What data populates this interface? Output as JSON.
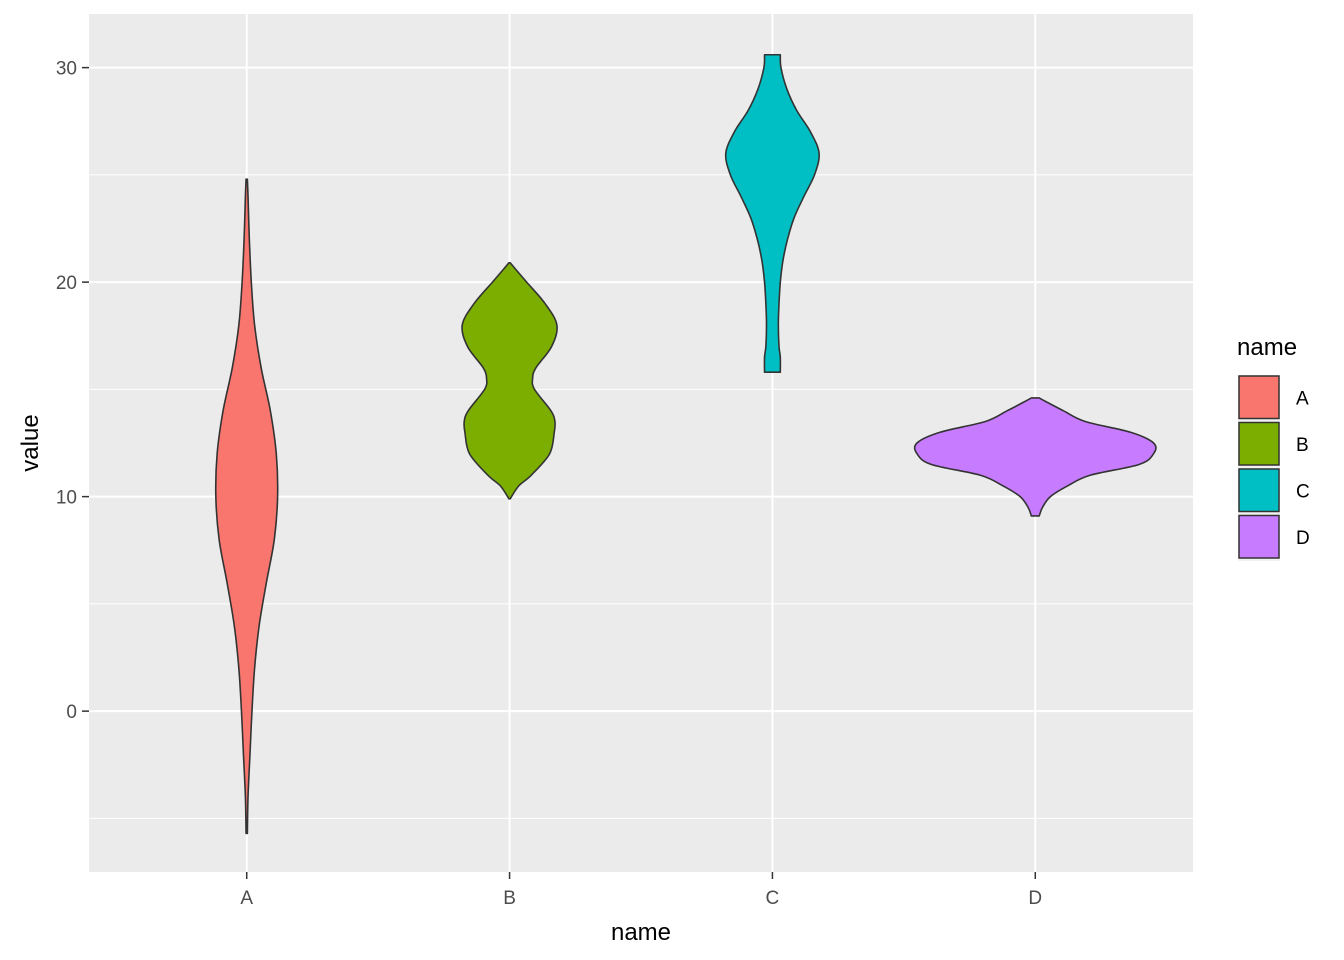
{
  "chart_data": {
    "type": "violin",
    "title": "",
    "xlabel": "name",
    "ylabel": "value",
    "ylim": [
      -7.5,
      32.5
    ],
    "y_ticks": [
      0,
      10,
      20,
      30
    ],
    "y_minor": [
      -5,
      5,
      15,
      25
    ],
    "grid": true,
    "categories": [
      "A",
      "B",
      "C",
      "D"
    ],
    "legend": {
      "title": "name",
      "position": "right",
      "entries": [
        "A",
        "B",
        "C",
        "D"
      ]
    },
    "series": [
      {
        "name": "A",
        "color": "#F8766D",
        "min": -5.7,
        "max": 24.8,
        "profile": [
          [
            -5.7,
            0.1
          ],
          [
            -4,
            0.2
          ],
          [
            -2,
            0.5
          ],
          [
            0,
            0.8
          ],
          [
            2,
            1.2
          ],
          [
            4,
            1.9
          ],
          [
            6,
            3.0
          ],
          [
            8,
            4.2
          ],
          [
            10,
            4.7
          ],
          [
            12,
            4.5
          ],
          [
            14,
            3.6
          ],
          [
            16,
            2.2
          ],
          [
            18,
            1.2
          ],
          [
            20,
            0.7
          ],
          [
            22,
            0.4
          ],
          [
            24,
            0.2
          ],
          [
            24.8,
            0.1
          ]
        ]
      },
      {
        "name": "B",
        "color": "#7CAE00",
        "min": 9.9,
        "max": 20.9,
        "profile": [
          [
            9.9,
            0.1
          ],
          [
            10.5,
            1.4
          ],
          [
            11,
            3.3
          ],
          [
            12,
            6.1
          ],
          [
            13,
            6.8
          ],
          [
            13.5,
            6.9
          ],
          [
            14,
            6.3
          ],
          [
            15,
            3.8
          ],
          [
            15.5,
            3.5
          ],
          [
            16,
            4.0
          ],
          [
            17,
            6.4
          ],
          [
            18,
            7.2
          ],
          [
            19,
            5.4
          ],
          [
            20,
            2.6
          ],
          [
            20.5,
            1.2
          ],
          [
            20.9,
            0.1
          ]
        ]
      },
      {
        "name": "C",
        "color": "#00BFC4",
        "min": 15.8,
        "max": 30.6,
        "profile": [
          [
            15.8,
            1.2
          ],
          [
            16.5,
            1.2
          ],
          [
            17,
            1.0
          ],
          [
            18,
            0.9
          ],
          [
            19,
            1.0
          ],
          [
            20,
            1.2
          ],
          [
            21,
            1.6
          ],
          [
            22,
            2.3
          ],
          [
            23,
            3.3
          ],
          [
            24,
            4.8
          ],
          [
            25,
            6.4
          ],
          [
            26,
            7.1
          ],
          [
            27,
            5.8
          ],
          [
            28,
            3.7
          ],
          [
            29,
            2.2
          ],
          [
            30,
            1.3
          ],
          [
            30.6,
            1.2
          ]
        ]
      },
      {
        "name": "D",
        "color": "#C77CFF",
        "min": 9.1,
        "max": 14.6,
        "profile": [
          [
            9.1,
            0.6
          ],
          [
            9.5,
            1.1
          ],
          [
            10,
            2.3
          ],
          [
            10.5,
            4.9
          ],
          [
            11,
            8.4
          ],
          [
            11.5,
            15.8
          ],
          [
            12,
            18.0
          ],
          [
            12.5,
            18.0
          ],
          [
            13,
            14.5
          ],
          [
            13.5,
            7.6
          ],
          [
            14,
            4.3
          ],
          [
            14.4,
            1.8
          ],
          [
            14.6,
            0.6
          ]
        ]
      }
    ]
  }
}
